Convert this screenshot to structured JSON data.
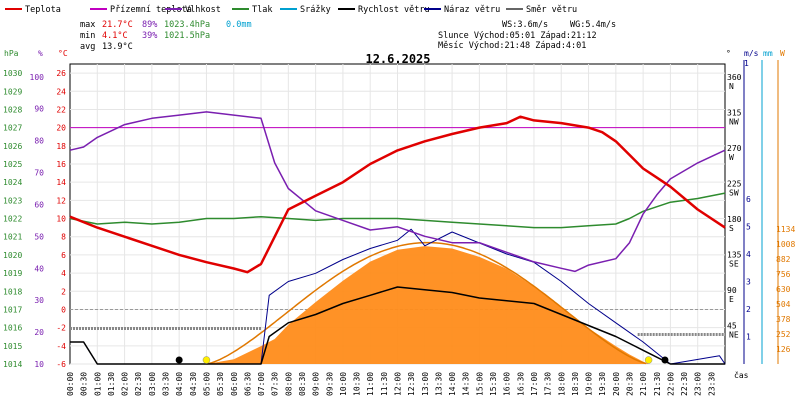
{
  "chart_data": {
    "type": "line",
    "title": "12.6.2025",
    "legend": [
      {
        "name": "Teplota",
        "color": "#e00000"
      },
      {
        "name": "Přízemní teplota",
        "color": "#c000c0"
      },
      {
        "name": "Vlhkost",
        "color": "#7a1fb0"
      },
      {
        "name": "Tlak",
        "color": "#2e8b2e"
      },
      {
        "name": "Srážky",
        "color": "#00a0d0"
      },
      {
        "name": "Rychlost větru",
        "color": "#000000"
      },
      {
        "name": "Náraz větru",
        "color": "#00008b"
      },
      {
        "name": "Směr větru",
        "color": "#666666"
      }
    ],
    "stats": {
      "max_label": "max",
      "min_label": "min",
      "avg_label": "avg",
      "max_temp": "21.7°C",
      "max_hum": "89%",
      "max_press": "1023.4hPa",
      "precip": "0.0mm",
      "min_temp": "4.1°C",
      "min_hum": "39%",
      "min_press": "1021.5hPa",
      "avg_temp": "13.9°C"
    },
    "wind_info": {
      "ws": "WS:3.6m/s",
      "wg": "WG:5.4m/s",
      "sun": "Slunce Východ:05:01  Západ:21:12",
      "moon": "Měsíc  Východ:21:48  Západ:4:01"
    },
    "axes": {
      "hpa_unit": "hPa",
      "pct_unit": "%",
      "c_unit": "°C",
      "deg_unit": "°",
      "ms_unit": "m/s",
      "mm_unit": "mm",
      "w_unit": "W",
      "x_unit": "čas",
      "hpa_ticks": [
        "1030",
        "1029",
        "1028",
        "1027",
        "1026",
        "1025",
        "1024",
        "1023",
        "1022",
        "1021",
        "1020",
        "1019",
        "1018",
        "1017",
        "1016",
        "1015",
        "1014"
      ],
      "pct_ticks": [
        "100",
        "90",
        "80",
        "70",
        "60",
        "50",
        "40",
        "30",
        "20",
        "10"
      ],
      "c_ticks": [
        "26",
        "24",
        "22",
        "20",
        "18",
        "16",
        "14",
        "12",
        "10",
        "8",
        "6",
        "4",
        "2",
        "0",
        "-2",
        "-4",
        "-6"
      ],
      "deg_ticks": [
        "360",
        "315",
        "270",
        "225",
        "180",
        "135",
        "90",
        "45"
      ],
      "dir_ticks": [
        "N",
        "NW",
        "W",
        "SW",
        "S",
        "SE",
        "E",
        "NE"
      ],
      "ms_ticks": [
        "6",
        "5",
        "4",
        "3",
        "2",
        "1"
      ],
      "mm_top": "1",
      "w_ticks": [
        "1134",
        "1008",
        "882",
        "756",
        "630",
        "504",
        "378",
        "252",
        "126"
      ],
      "x_ticks": [
        "00:00",
        "00:30",
        "01:00",
        "01:30",
        "02:00",
        "02:30",
        "03:00",
        "03:30",
        "04:00",
        "04:30",
        "05:00",
        "05:30",
        "06:00",
        "06:30",
        "07:00",
        "07:30",
        "08:00",
        "08:30",
        "09:00",
        "09:30",
        "10:00",
        "10:30",
        "11:00",
        "11:30",
        "12:00",
        "12:30",
        "13:00",
        "13:30",
        "14:00",
        "14:30",
        "15:00",
        "15:30",
        "16:00",
        "16:30",
        "17:00",
        "17:30",
        "18:00",
        "18:30",
        "19:00",
        "19:30",
        "20:00",
        "20:30",
        "21:00",
        "21:30",
        "22:00",
        "22:30",
        "23:00",
        "23:30"
      ]
    },
    "ranges": {
      "temp_c": [
        -6,
        27
      ],
      "humidity_pct": [
        10,
        104
      ],
      "pressure_hpa": [
        1014,
        1030.5
      ],
      "wind_ms": [
        0,
        6
      ],
      "solar_w": [
        0,
        1134
      ]
    },
    "series_temp": [
      [
        0,
        10.2
      ],
      [
        1,
        9
      ],
      [
        2,
        8
      ],
      [
        3,
        7
      ],
      [
        4,
        6
      ],
      [
        5,
        5.2
      ],
      [
        6,
        4.5
      ],
      [
        6.5,
        4.1
      ],
      [
        7,
        5
      ],
      [
        7.5,
        8
      ],
      [
        8,
        11
      ],
      [
        9,
        12.5
      ],
      [
        10,
        14
      ],
      [
        11,
        16
      ],
      [
        12,
        17.5
      ],
      [
        13,
        18.5
      ],
      [
        14,
        19.3
      ],
      [
        15,
        20
      ],
      [
        16,
        20.5
      ],
      [
        16.5,
        21.2
      ],
      [
        17,
        20.8
      ],
      [
        18,
        20.5
      ],
      [
        19,
        20
      ],
      [
        19.5,
        19.5
      ],
      [
        20,
        18.5
      ],
      [
        20.5,
        17
      ],
      [
        21,
        15.5
      ],
      [
        21.5,
        14.5
      ],
      [
        22,
        13.5
      ],
      [
        23,
        11
      ],
      [
        24,
        9
      ]
    ],
    "series_ground_temp_ref": 20,
    "series_humidity": [
      [
        0,
        77
      ],
      [
        0.5,
        78
      ],
      [
        1,
        81
      ],
      [
        2,
        85
      ],
      [
        3,
        87
      ],
      [
        4,
        88
      ],
      [
        5,
        89
      ],
      [
        6,
        88
      ],
      [
        7,
        87
      ],
      [
        7.5,
        73
      ],
      [
        8,
        65
      ],
      [
        9,
        58
      ],
      [
        10,
        55
      ],
      [
        11,
        52
      ],
      [
        12,
        53
      ],
      [
        13,
        50
      ],
      [
        14,
        48
      ],
      [
        15,
        48
      ],
      [
        16,
        45
      ],
      [
        17,
        42
      ],
      [
        18,
        40
      ],
      [
        18.5,
        39
      ],
      [
        19,
        41
      ],
      [
        20,
        43
      ],
      [
        20.5,
        48
      ],
      [
        21,
        57
      ],
      [
        21.5,
        63
      ],
      [
        22,
        68
      ],
      [
        23,
        73
      ],
      [
        24,
        77
      ]
    ],
    "series_pressure": [
      [
        0,
        1022
      ],
      [
        1,
        1021.7
      ],
      [
        2,
        1021.8
      ],
      [
        3,
        1021.7
      ],
      [
        4,
        1021.8
      ],
      [
        5,
        1022
      ],
      [
        6,
        1022
      ],
      [
        7,
        1022.1
      ],
      [
        8,
        1022
      ],
      [
        9,
        1021.9
      ],
      [
        10,
        1022
      ],
      [
        11,
        1022
      ],
      [
        12,
        1022
      ],
      [
        13,
        1021.9
      ],
      [
        14,
        1021.8
      ],
      [
        15,
        1021.7
      ],
      [
        16,
        1021.6
      ],
      [
        17,
        1021.5
      ],
      [
        18,
        1021.5
      ],
      [
        19,
        1021.6
      ],
      [
        20,
        1021.7
      ],
      [
        20.5,
        1022
      ],
      [
        21,
        1022.4
      ],
      [
        22,
        1022.9
      ],
      [
        23,
        1023.1
      ],
      [
        24,
        1023.4
      ]
    ],
    "series_wind_speed": [
      [
        0,
        0.8
      ],
      [
        0.5,
        0.8
      ],
      [
        1,
        0
      ],
      [
        3,
        0
      ],
      [
        4,
        0
      ],
      [
        6,
        0
      ],
      [
        7,
        0
      ],
      [
        7.3,
        1
      ],
      [
        8,
        1.5
      ],
      [
        9,
        1.8
      ],
      [
        10,
        2.2
      ],
      [
        11,
        2.5
      ],
      [
        12,
        2.8
      ],
      [
        13,
        2.7
      ],
      [
        14,
        2.6
      ],
      [
        15,
        2.4
      ],
      [
        16,
        2.3
      ],
      [
        17,
        2.2
      ],
      [
        18,
        1.8
      ],
      [
        19,
        1.4
      ],
      [
        20,
        1
      ],
      [
        21,
        0.5
      ],
      [
        22,
        0
      ],
      [
        24,
        0
      ]
    ],
    "series_wind_gust": [
      [
        0,
        0.8
      ],
      [
        0.5,
        0.8
      ],
      [
        1,
        0
      ],
      [
        7,
        0
      ],
      [
        7.3,
        2.5
      ],
      [
        8,
        3
      ],
      [
        9,
        3.3
      ],
      [
        10,
        3.8
      ],
      [
        11,
        4.2
      ],
      [
        12,
        4.5
      ],
      [
        12.5,
        4.9
      ],
      [
        13,
        4.3
      ],
      [
        14,
        4.8
      ],
      [
        15,
        4.4
      ],
      [
        16,
        4
      ],
      [
        17,
        3.7
      ],
      [
        18,
        3
      ],
      [
        19,
        2.2
      ],
      [
        20,
        1.5
      ],
      [
        21,
        0.8
      ],
      [
        22,
        0
      ],
      [
        23.8,
        0.3
      ],
      [
        24,
        0
      ]
    ],
    "series_solar": [
      [
        5,
        0
      ],
      [
        6,
        40
      ],
      [
        7,
        150
      ],
      [
        7.5,
        210
      ],
      [
        8,
        330
      ],
      [
        9,
        520
      ],
      [
        10,
        700
      ],
      [
        11,
        860
      ],
      [
        12,
        960
      ],
      [
        13,
        990
      ],
      [
        14,
        970
      ],
      [
        15,
        900
      ],
      [
        16,
        800
      ],
      [
        17,
        650
      ],
      [
        18,
        480
      ],
      [
        19,
        300
      ],
      [
        20,
        150
      ],
      [
        20.5,
        80
      ],
      [
        21,
        20
      ],
      [
        21.2,
        0
      ]
    ],
    "series_solar_theory_peak": 1020,
    "series_wind_dir_mean": 45
  }
}
